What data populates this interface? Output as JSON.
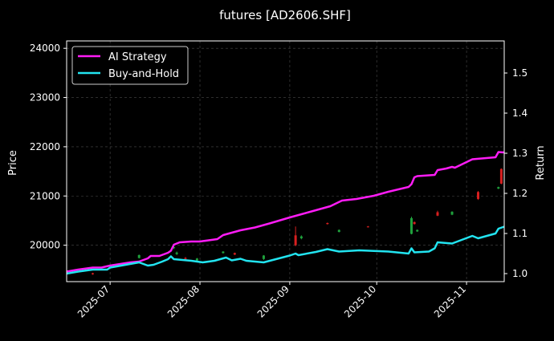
{
  "colors": {
    "background": "#000000",
    "strategy": "#ff1cf6",
    "buyhold": "#22e4f0",
    "candle_up": "#1fa03c",
    "candle_down": "#d81f1f",
    "grid": "#4a4a4a",
    "axis": "#ffffff"
  },
  "chart_data": {
    "type": "line",
    "title": "futures [AD2606.SHF]",
    "ylabel_left": "Price",
    "ylabel_right": "Return",
    "x_tick_labels": [
      "2025-07",
      "2025-08",
      "2025-09",
      "2025-10",
      "2025-11"
    ],
    "x_ticks": [
      "2025-07-01",
      "2025-08-01",
      "2025-09-01",
      "2025-10-01",
      "2025-11-01"
    ],
    "xlim": [
      "2025-06-16",
      "2025-11-14"
    ],
    "y_left_ticks": [
      20000,
      21000,
      22000,
      23000,
      24000
    ],
    "y_left_tick_labels": [
      "20000",
      "21000",
      "22000",
      "23000",
      "24000"
    ],
    "ylim_left": [
      19260,
      24150
    ],
    "y_right_ticks": [
      1.0,
      1.1,
      1.2,
      1.3,
      1.4,
      1.5
    ],
    "y_right_tick_labels": [
      "1.0",
      "1.1",
      "1.2",
      "1.3",
      "1.4",
      "1.5"
    ],
    "ylim_right": [
      0.98,
      1.58
    ],
    "grid": true,
    "legend_position": "top-left",
    "series": [
      {
        "name": "AI Strategy",
        "axis": "right",
        "color": "#ff1cf6",
        "points": [
          [
            "2025-06-16",
            1.005
          ],
          [
            "2025-06-20",
            1.01
          ],
          [
            "2025-06-25",
            1.015
          ],
          [
            "2025-06-28",
            1.015
          ],
          [
            "2025-07-01",
            1.02
          ],
          [
            "2025-07-08",
            1.028
          ],
          [
            "2025-07-11",
            1.03
          ],
          [
            "2025-07-14",
            1.038
          ],
          [
            "2025-07-15",
            1.044
          ],
          [
            "2025-07-18",
            1.044
          ],
          [
            "2025-07-21",
            1.052
          ],
          [
            "2025-07-22",
            1.057
          ],
          [
            "2025-07-23",
            1.072
          ],
          [
            "2025-07-25",
            1.078
          ],
          [
            "2025-07-29",
            1.08
          ],
          [
            "2025-08-01",
            1.08
          ],
          [
            "2025-08-04",
            1.083
          ],
          [
            "2025-08-07",
            1.086
          ],
          [
            "2025-08-09",
            1.096
          ],
          [
            "2025-08-12",
            1.102
          ],
          [
            "2025-08-15",
            1.108
          ],
          [
            "2025-08-20",
            1.115
          ],
          [
            "2025-08-25",
            1.125
          ],
          [
            "2025-09-01",
            1.14
          ],
          [
            "2025-09-05",
            1.148
          ],
          [
            "2025-09-10",
            1.158
          ],
          [
            "2025-09-15",
            1.168
          ],
          [
            "2025-09-19",
            1.182
          ],
          [
            "2025-09-24",
            1.186
          ],
          [
            "2025-09-30",
            1.194
          ],
          [
            "2025-10-05",
            1.204
          ],
          [
            "2025-10-12",
            1.216
          ],
          [
            "2025-10-13",
            1.223
          ],
          [
            "2025-10-14",
            1.24
          ],
          [
            "2025-10-15",
            1.243
          ],
          [
            "2025-10-21",
            1.246
          ],
          [
            "2025-10-22",
            1.258
          ],
          [
            "2025-10-25",
            1.262
          ],
          [
            "2025-10-27",
            1.266
          ],
          [
            "2025-10-28",
            1.264
          ],
          [
            "2025-11-03",
            1.285
          ],
          [
            "2025-11-11",
            1.29
          ],
          [
            "2025-11-12",
            1.303
          ],
          [
            "2025-11-14",
            1.302
          ]
        ]
      },
      {
        "name": "Buy-and-Hold",
        "axis": "right",
        "color": "#22e4f0",
        "points": [
          [
            "2025-06-16",
            1.0
          ],
          [
            "2025-06-20",
            1.005
          ],
          [
            "2025-06-25",
            1.01
          ],
          [
            "2025-06-30",
            1.01
          ],
          [
            "2025-07-01",
            1.015
          ],
          [
            "2025-07-11",
            1.028
          ],
          [
            "2025-07-14",
            1.02
          ],
          [
            "2025-07-16",
            1.022
          ],
          [
            "2025-07-19",
            1.03
          ],
          [
            "2025-07-21",
            1.036
          ],
          [
            "2025-07-22",
            1.043
          ],
          [
            "2025-07-23",
            1.036
          ],
          [
            "2025-07-29",
            1.032
          ],
          [
            "2025-08-02",
            1.028
          ],
          [
            "2025-08-06",
            1.032
          ],
          [
            "2025-08-10",
            1.04
          ],
          [
            "2025-08-12",
            1.033
          ],
          [
            "2025-08-15",
            1.037
          ],
          [
            "2025-08-17",
            1.032
          ],
          [
            "2025-08-23",
            1.028
          ],
          [
            "2025-09-01",
            1.045
          ],
          [
            "2025-09-03",
            1.05
          ],
          [
            "2025-09-04",
            1.046
          ],
          [
            "2025-09-10",
            1.054
          ],
          [
            "2025-09-14",
            1.061
          ],
          [
            "2025-09-18",
            1.055
          ],
          [
            "2025-09-25",
            1.058
          ],
          [
            "2025-10-05",
            1.055
          ],
          [
            "2025-10-12",
            1.05
          ],
          [
            "2025-10-13",
            1.063
          ],
          [
            "2025-10-14",
            1.053
          ],
          [
            "2025-10-19",
            1.055
          ],
          [
            "2025-10-21",
            1.063
          ],
          [
            "2025-10-22",
            1.078
          ],
          [
            "2025-10-27",
            1.075
          ],
          [
            "2025-11-03",
            1.094
          ],
          [
            "2025-11-05",
            1.088
          ],
          [
            "2025-11-11",
            1.1
          ],
          [
            "2025-11-12",
            1.112
          ],
          [
            "2025-11-14",
            1.117
          ]
        ]
      }
    ],
    "candles": [
      {
        "date": "2025-06-25",
        "open": 19430,
        "close": 19410,
        "high": 19440,
        "low": 19400
      },
      {
        "date": "2025-07-11",
        "open": 19740,
        "close": 19800,
        "high": 19810,
        "low": 19730
      },
      {
        "date": "2025-07-23",
        "open": 19940,
        "close": 19960,
        "high": 20000,
        "low": 19920
      },
      {
        "date": "2025-07-24",
        "open": 19820,
        "close": 19850,
        "high": 19870,
        "low": 19800
      },
      {
        "date": "2025-07-27",
        "open": 19740,
        "close": 19720,
        "high": 19760,
        "low": 19700
      },
      {
        "date": "2025-07-31",
        "open": 19690,
        "close": 19730,
        "high": 19740,
        "low": 19680
      },
      {
        "date": "2025-08-09",
        "open": 19840,
        "close": 19870,
        "high": 19880,
        "low": 19830
      },
      {
        "date": "2025-08-13",
        "open": 19840,
        "close": 19810,
        "high": 19850,
        "low": 19800
      },
      {
        "date": "2025-08-23",
        "open": 19720,
        "close": 19790,
        "high": 19800,
        "low": 19700
      },
      {
        "date": "2025-09-03",
        "open": 20200,
        "close": 20000,
        "high": 20380,
        "low": 19980
      },
      {
        "date": "2025-09-05",
        "open": 20140,
        "close": 20180,
        "high": 20200,
        "low": 20120
      },
      {
        "date": "2025-09-14",
        "open": 20450,
        "close": 20430,
        "high": 20460,
        "low": 20420
      },
      {
        "date": "2025-09-18",
        "open": 20270,
        "close": 20310,
        "high": 20320,
        "low": 20260
      },
      {
        "date": "2025-09-28",
        "open": 20380,
        "close": 20370,
        "high": 20390,
        "low": 20360
      },
      {
        "date": "2025-10-13",
        "open": 20230,
        "close": 20550,
        "high": 20580,
        "low": 20220
      },
      {
        "date": "2025-10-14",
        "open": 20470,
        "close": 20430,
        "high": 20480,
        "low": 20420
      },
      {
        "date": "2025-10-15",
        "open": 20280,
        "close": 20310,
        "high": 20320,
        "low": 20270
      },
      {
        "date": "2025-10-22",
        "open": 20670,
        "close": 20600,
        "high": 20700,
        "low": 20590
      },
      {
        "date": "2025-10-27",
        "open": 20620,
        "close": 20680,
        "high": 20690,
        "low": 20610
      },
      {
        "date": "2025-11-05",
        "open": 21080,
        "close": 20940,
        "high": 21100,
        "low": 20920
      },
      {
        "date": "2025-11-13",
        "open": 21550,
        "close": 21250,
        "high": 21560,
        "low": 21240
      },
      {
        "date": "2025-11-12",
        "open": 21150,
        "close": 21180,
        "high": 21190,
        "low": 21140
      }
    ]
  }
}
